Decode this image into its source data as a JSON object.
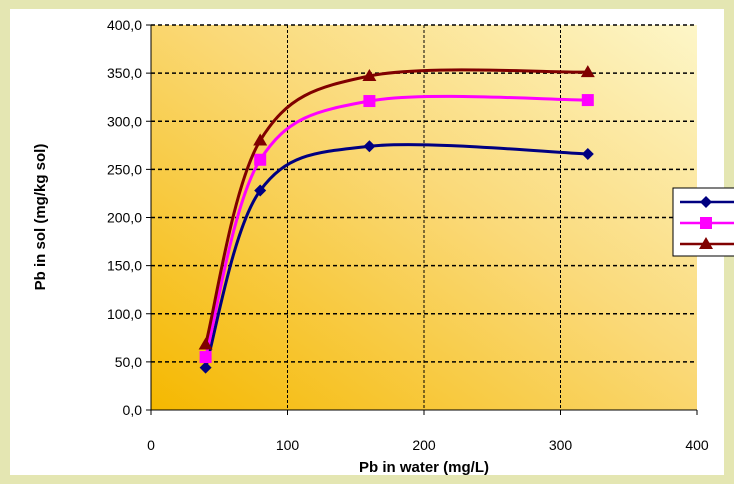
{
  "chart_data": {
    "type": "line",
    "title": "",
    "xlabel": "Pb in water (mg/L)",
    "ylabel": "Pb in sol (mg/kg sol)",
    "xlim": [
      0,
      400
    ],
    "ylim": [
      0,
      400
    ],
    "x_ticks": [
      "0",
      "100",
      "200",
      "300",
      "400"
    ],
    "y_ticks": [
      "0,0",
      "50,0",
      "100,0",
      "150,0",
      "200,0",
      "250,0",
      "300,0",
      "350,0",
      "400,0"
    ],
    "grid": true,
    "legend_position": "right",
    "x": [
      40,
      80,
      160,
      320
    ],
    "series": [
      {
        "values": [
          44,
          228,
          274,
          266
        ],
        "color": "#000080",
        "marker": "diamond"
      },
      {
        "values": [
          55,
          260,
          321,
          322
        ],
        "color": "#ff00ff",
        "marker": "square"
      },
      {
        "values": [
          68,
          280,
          347,
          351
        ],
        "color": "#800000",
        "marker": "triangle"
      }
    ]
  }
}
